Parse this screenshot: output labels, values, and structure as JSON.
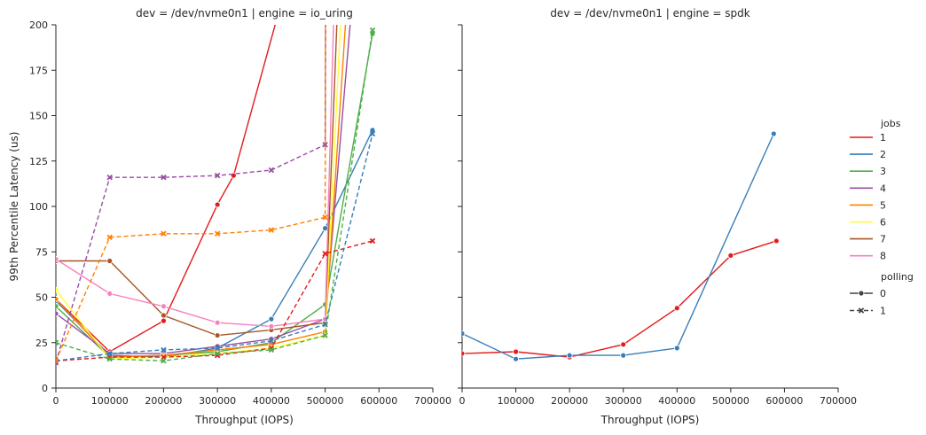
{
  "chart_data": [
    {
      "type": "line",
      "title": "dev = /dev/nvme0n1 | engine = io_uring",
      "xlabel": "Throughput (IOPS)",
      "ylabel": "99th Percentile Latency (us)",
      "xlim": [
        0,
        700000
      ],
      "ylim": [
        0,
        200
      ],
      "xticks": [
        0,
        100000,
        200000,
        300000,
        400000,
        500000,
        600000,
        700000
      ],
      "xtick_labels": [
        "0",
        "100000",
        "200000",
        "300000",
        "400000",
        "500000",
        "600000",
        "700000"
      ],
      "yticks": [
        0,
        25,
        50,
        75,
        100,
        125,
        150,
        175,
        200
      ],
      "ytick_labels": [
        "0",
        "25",
        "50",
        "75",
        "100",
        "125",
        "150",
        "175",
        "200"
      ],
      "grid": false,
      "series": [
        {
          "name": "1",
          "jobs": "1",
          "polling": "0",
          "color": "#e41a1c",
          "points": [
            [
              0,
              49
            ],
            [
              100000,
              20
            ],
            [
              200000,
              37
            ],
            [
              300000,
              101
            ],
            [
              330000,
              117
            ],
            [
              500000,
              300
            ]
          ]
        },
        {
          "name": "2",
          "jobs": "2",
          "polling": "0",
          "color": "#377eb8",
          "points": [
            [
              0,
              48
            ],
            [
              100000,
              18
            ],
            [
              200000,
              17
            ],
            [
              300000,
              22
            ],
            [
              400000,
              38
            ],
            [
              500000,
              88
            ],
            [
              588000,
              142
            ]
          ]
        },
        {
          "name": "3",
          "jobs": "3",
          "polling": "0",
          "color": "#4daf4a",
          "points": [
            [
              0,
              45
            ],
            [
              100000,
              17
            ],
            [
              200000,
              18
            ],
            [
              300000,
              20
            ],
            [
              400000,
              25
            ],
            [
              500000,
              46
            ],
            [
              588000,
              195
            ]
          ]
        },
        {
          "name": "4",
          "jobs": "4",
          "polling": "0",
          "color": "#984ea3",
          "points": [
            [
              0,
              41
            ],
            [
              100000,
              19
            ],
            [
              200000,
              19
            ],
            [
              300000,
              23
            ],
            [
              400000,
              27
            ],
            [
              500000,
              38
            ],
            [
              575000,
              300
            ]
          ]
        },
        {
          "name": "5",
          "jobs": "5",
          "polling": "0",
          "color": "#ff7f00",
          "points": [
            [
              0,
              49
            ],
            [
              100000,
              17
            ],
            [
              200000,
              18
            ],
            [
              300000,
              21
            ],
            [
              400000,
              24
            ],
            [
              500000,
              31
            ],
            [
              560000,
              300
            ]
          ]
        },
        {
          "name": "6",
          "jobs": "6",
          "polling": "0",
          "color": "#ffff33",
          "points": [
            [
              0,
              54
            ],
            [
              100000,
              16
            ],
            [
              200000,
              17
            ],
            [
              300000,
              19
            ],
            [
              400000,
              22
            ],
            [
              500000,
              29
            ],
            [
              545000,
              300
            ]
          ]
        },
        {
          "name": "7",
          "jobs": "7",
          "polling": "0",
          "color": "#a65628",
          "points": [
            [
              0,
              70
            ],
            [
              100000,
              70
            ],
            [
              200000,
              40
            ],
            [
              300000,
              29
            ],
            [
              400000,
              32
            ],
            [
              500000,
              36
            ],
            [
              535000,
              300
            ]
          ]
        },
        {
          "name": "8",
          "jobs": "8",
          "polling": "0",
          "color": "#f781bf",
          "points": [
            [
              0,
              71
            ],
            [
              100000,
              52
            ],
            [
              200000,
              45
            ],
            [
              300000,
              36
            ],
            [
              400000,
              34
            ],
            [
              500000,
              38
            ],
            [
              525000,
              300
            ]
          ]
        },
        {
          "name": "1",
          "jobs": "1",
          "polling": "1",
          "color": "#e41a1c",
          "points": [
            [
              0,
              15
            ],
            [
              100000,
              17
            ],
            [
              200000,
              17
            ],
            [
              300000,
              18
            ],
            [
              400000,
              22
            ],
            [
              500000,
              74
            ],
            [
              588000,
              81
            ]
          ]
        },
        {
          "name": "2",
          "jobs": "2",
          "polling": "1",
          "color": "#377eb8",
          "points": [
            [
              0,
              15
            ],
            [
              100000,
              19
            ],
            [
              200000,
              21
            ],
            [
              300000,
              22
            ],
            [
              400000,
              26
            ],
            [
              500000,
              35
            ],
            [
              588000,
              140
            ]
          ]
        },
        {
          "name": "3",
          "jobs": "3",
          "polling": "1",
          "color": "#4daf4a",
          "points": [
            [
              0,
              25
            ],
            [
              100000,
              16
            ],
            [
              200000,
              15
            ],
            [
              300000,
              19
            ],
            [
              400000,
              21
            ],
            [
              500000,
              29
            ],
            [
              588000,
              197
            ]
          ]
        },
        {
          "name": "4",
          "jobs": "4",
          "polling": "1",
          "color": "#984ea3",
          "points": [
            [
              0,
              14
            ],
            [
              100000,
              116
            ],
            [
              200000,
              116
            ],
            [
              300000,
              117
            ],
            [
              400000,
              120
            ],
            [
              500000,
              134
            ],
            [
              502000,
              300
            ]
          ]
        },
        {
          "name": "5",
          "jobs": "5",
          "polling": "1",
          "color": "#ff7f00",
          "points": [
            [
              0,
              15
            ],
            [
              100000,
              83
            ],
            [
              200000,
              85
            ],
            [
              300000,
              85
            ],
            [
              400000,
              87
            ],
            [
              500000,
              94
            ],
            [
              501000,
              300
            ]
          ]
        }
      ]
    },
    {
      "type": "line",
      "title": "dev = /dev/nvme0n1 | engine = spdk",
      "xlabel": "Throughput (IOPS)",
      "ylabel": "",
      "xlim": [
        0,
        700000
      ],
      "ylim": [
        0,
        200
      ],
      "xticks": [
        0,
        100000,
        200000,
        300000,
        400000,
        500000,
        600000,
        700000
      ],
      "xtick_labels": [
        "0",
        "100000",
        "200000",
        "300000",
        "400000",
        "500000",
        "600000",
        "700000"
      ],
      "yticks": [
        0,
        25,
        50,
        75,
        100,
        125,
        150,
        175,
        200
      ],
      "grid": false,
      "series": [
        {
          "name": "1",
          "jobs": "1",
          "polling": "0",
          "color": "#e41a1c",
          "points": [
            [
              0,
              19
            ],
            [
              100000,
              20
            ],
            [
              200000,
              17
            ],
            [
              300000,
              24
            ],
            [
              400000,
              44
            ],
            [
              500000,
              73
            ],
            [
              585000,
              81
            ]
          ]
        },
        {
          "name": "2",
          "jobs": "2",
          "polling": "0",
          "color": "#377eb8",
          "points": [
            [
              0,
              30
            ],
            [
              100000,
              16
            ],
            [
              200000,
              18
            ],
            [
              300000,
              18
            ],
            [
              400000,
              22
            ],
            [
              580000,
              140
            ]
          ]
        }
      ]
    }
  ],
  "legend": {
    "placement": "right",
    "jobs_title": "jobs",
    "jobs": [
      {
        "label": "1",
        "color": "#e41a1c"
      },
      {
        "label": "2",
        "color": "#377eb8"
      },
      {
        "label": "3",
        "color": "#4daf4a"
      },
      {
        "label": "4",
        "color": "#984ea3"
      },
      {
        "label": "5",
        "color": "#ff7f00"
      },
      {
        "label": "6",
        "color": "#ffff33"
      },
      {
        "label": "7",
        "color": "#a65628"
      },
      {
        "label": "8",
        "color": "#f781bf"
      }
    ],
    "polling_title": "polling",
    "polling": [
      {
        "label": "0",
        "marker": "circle-icon",
        "dash": "solid"
      },
      {
        "label": "1",
        "marker": "x-icon",
        "dash": "dashed"
      }
    ]
  }
}
